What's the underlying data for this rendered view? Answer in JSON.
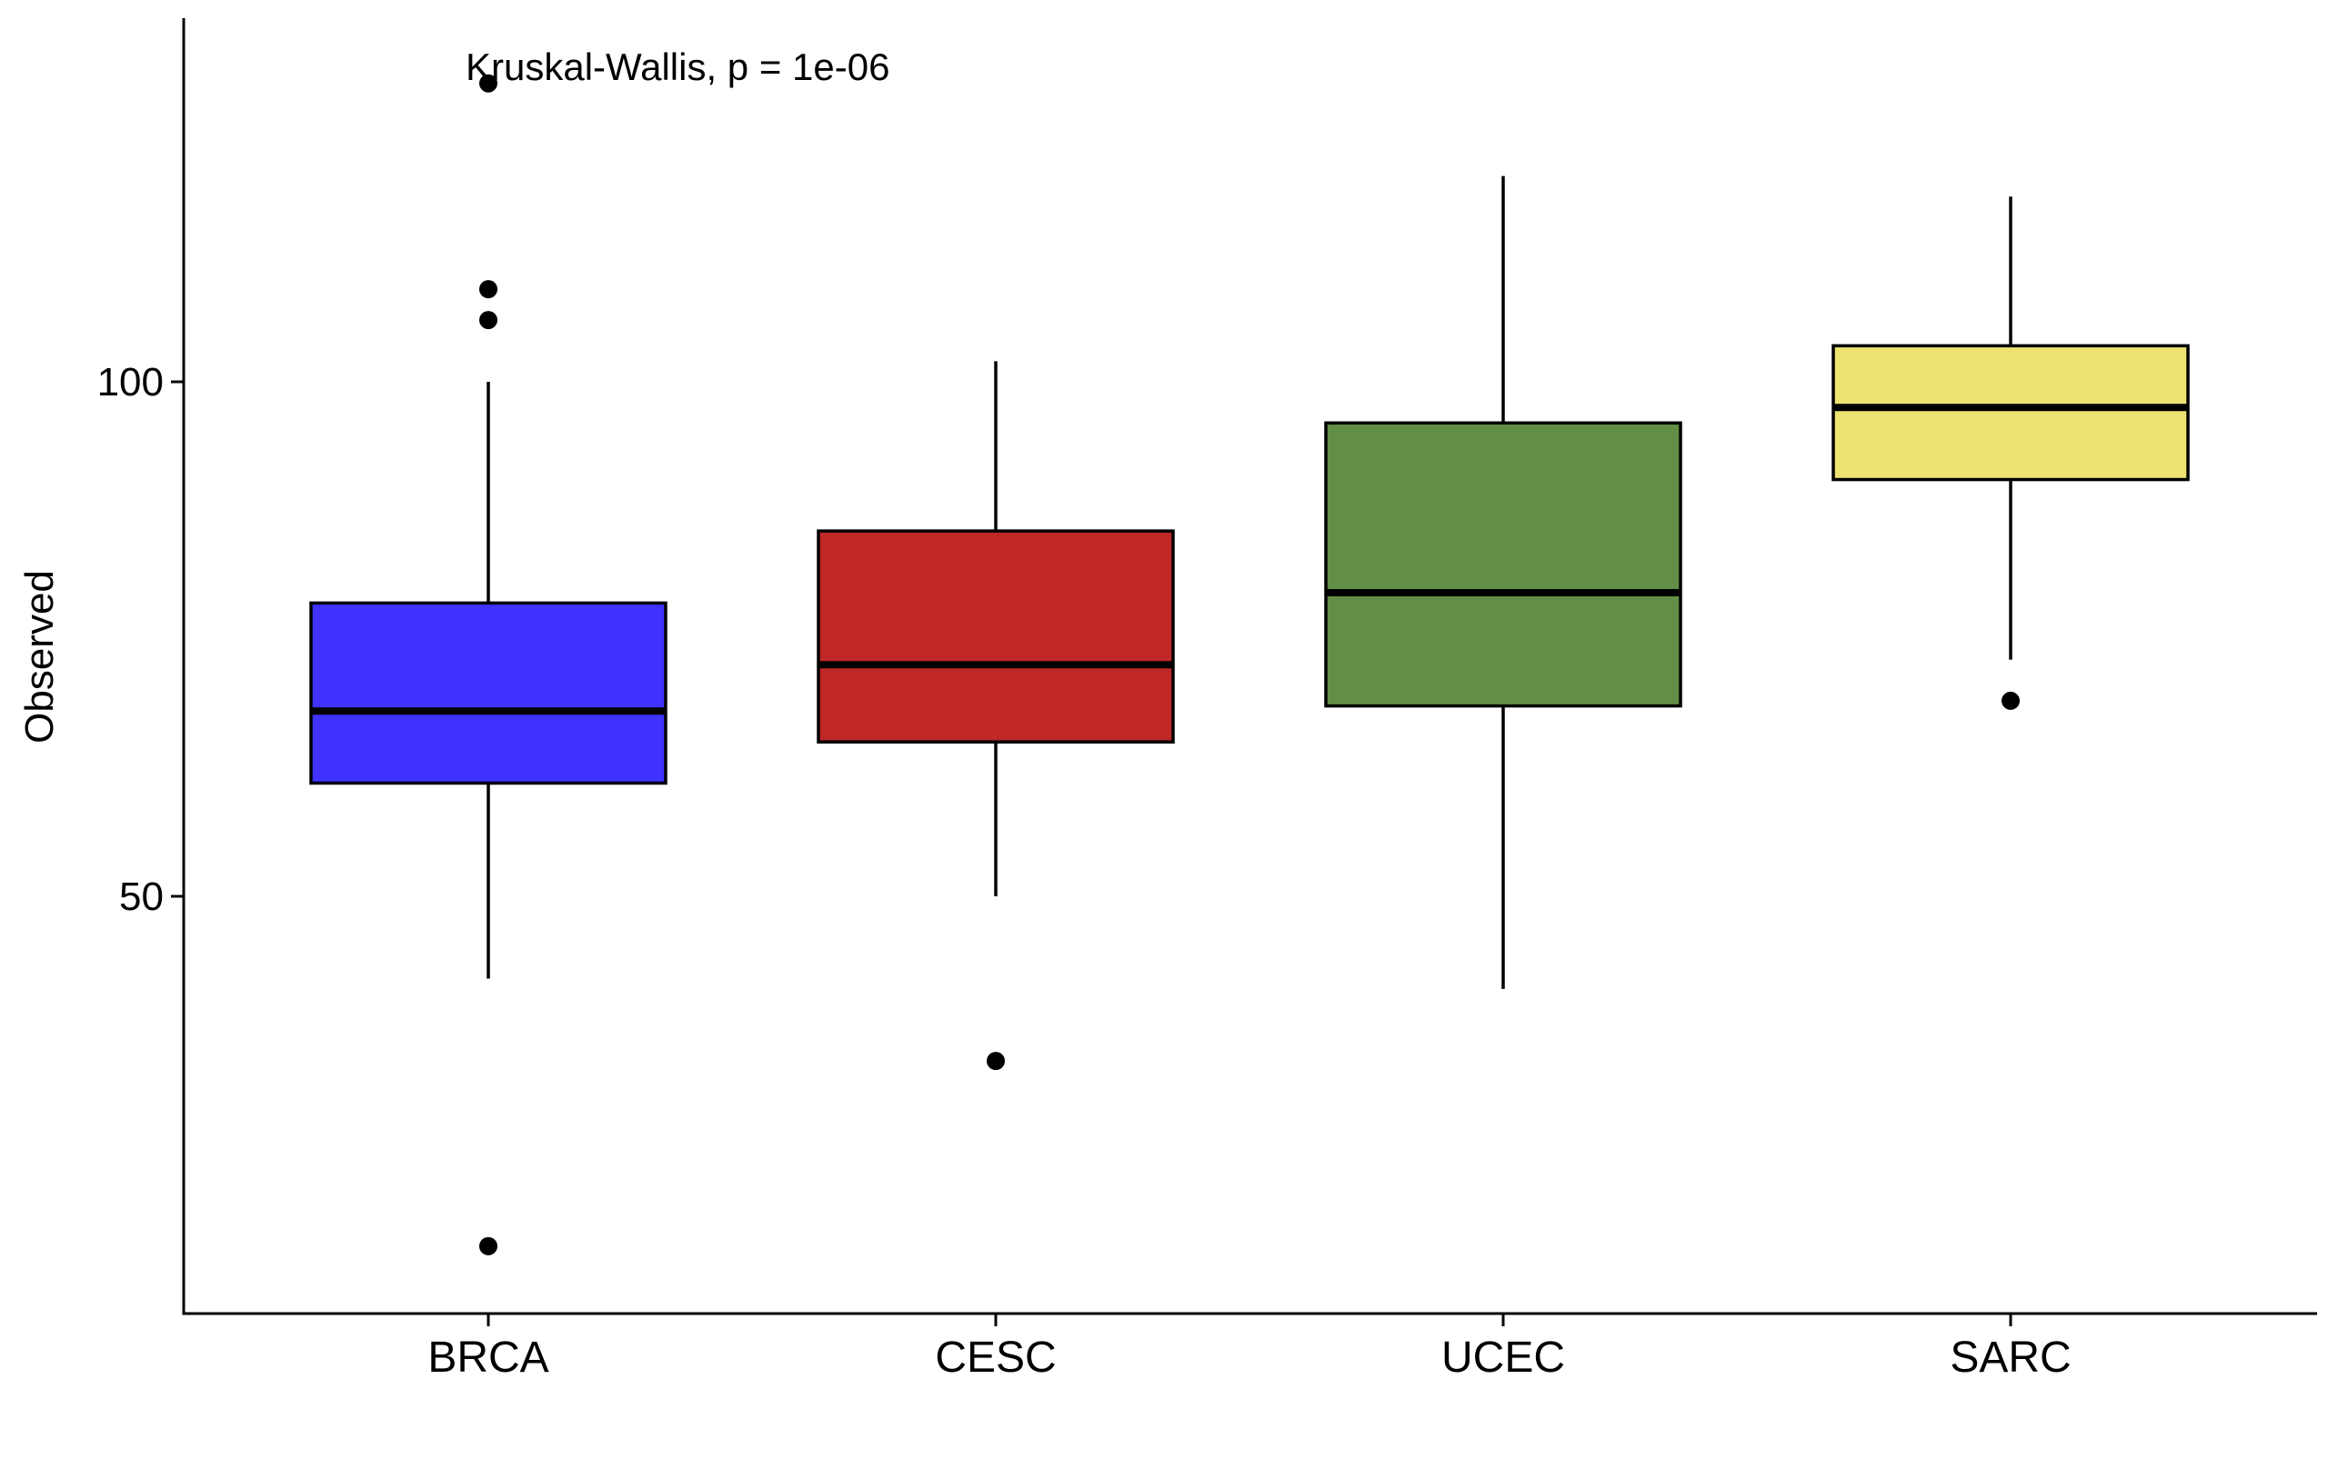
{
  "chart_data": {
    "type": "boxplot",
    "title": "",
    "xlabel": "",
    "ylabel": "Observed",
    "ylim": [
      10,
      135
    ],
    "yticks": [
      50,
      100
    ],
    "annotation": "Kruskal-Wallis, p = 1e-06",
    "grid": false,
    "legend": "none",
    "categories": [
      "BRCA",
      "CESC",
      "UCEC",
      "SARC"
    ],
    "series": [
      {
        "category": "BRCA",
        "color": "#4032FF",
        "q1": 61,
        "median": 68,
        "q3": 78.5,
        "whisker_low": 42,
        "whisker_high": 100,
        "outliers": [
          129,
          109,
          106,
          16
        ]
      },
      {
        "category": "CESC",
        "color": "#C02828",
        "q1": 65,
        "median": 72.5,
        "q3": 85.5,
        "whisker_low": 50,
        "whisker_high": 102,
        "outliers": [
          34
        ]
      },
      {
        "category": "UCEC",
        "color": "#628E45",
        "q1": 68.5,
        "median": 79.5,
        "q3": 96,
        "whisker_low": 41,
        "whisker_high": 120,
        "outliers": []
      },
      {
        "category": "SARC",
        "color": "#EDE373",
        "q1": 90.5,
        "median": 97.5,
        "q3": 103.5,
        "whisker_low": 73,
        "whisker_high": 118,
        "outliers": [
          69
        ]
      }
    ]
  }
}
